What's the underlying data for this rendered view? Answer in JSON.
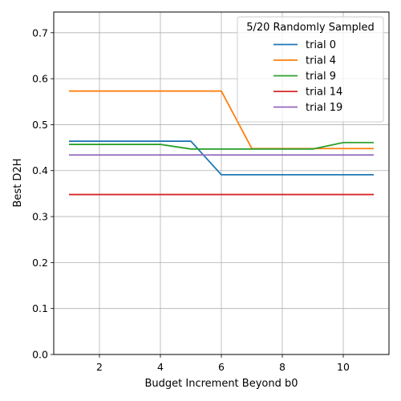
{
  "chart_data": {
    "type": "line",
    "xlabel": "Budget Increment Beyond b0",
    "ylabel": "Best D2H",
    "xlim": [
      0.5,
      11.5
    ],
    "ylim": [
      0.0,
      0.745
    ],
    "xticks": [
      2,
      4,
      6,
      8,
      10
    ],
    "yticks": [
      0.0,
      0.1,
      0.2,
      0.3,
      0.4,
      0.5,
      0.6,
      0.7
    ],
    "grid": true,
    "legend": {
      "title": "5/20 Randomly Sampled",
      "placement": "top-right"
    },
    "x": [
      1,
      2,
      3,
      4,
      5,
      6,
      7,
      8,
      9,
      10,
      11
    ],
    "series": [
      {
        "name": "trial 0",
        "color": "#1f77b4",
        "values": [
          0.464,
          0.464,
          0.464,
          0.464,
          0.464,
          0.391,
          0.391,
          0.391,
          0.391,
          0.391,
          0.391
        ]
      },
      {
        "name": "trial 4",
        "color": "#ff7f0e",
        "values": [
          0.573,
          0.573,
          0.573,
          0.573,
          0.573,
          0.573,
          0.448,
          0.448,
          0.448,
          0.448,
          0.448
        ]
      },
      {
        "name": "trial 9",
        "color": "#2ca02c",
        "values": [
          0.457,
          0.457,
          0.457,
          0.457,
          0.447,
          0.447,
          0.447,
          0.447,
          0.447,
          0.461,
          0.461
        ]
      },
      {
        "name": "trial 14",
        "color": "#d62728",
        "values": [
          0.348,
          0.348,
          0.348,
          0.348,
          0.348,
          0.348,
          0.348,
          0.348,
          0.348,
          0.348,
          0.348
        ]
      },
      {
        "name": "trial 19",
        "color": "#9467bd",
        "values": [
          0.434,
          0.434,
          0.434,
          0.434,
          0.434,
          0.434,
          0.434,
          0.434,
          0.434,
          0.434,
          0.434
        ]
      }
    ]
  }
}
